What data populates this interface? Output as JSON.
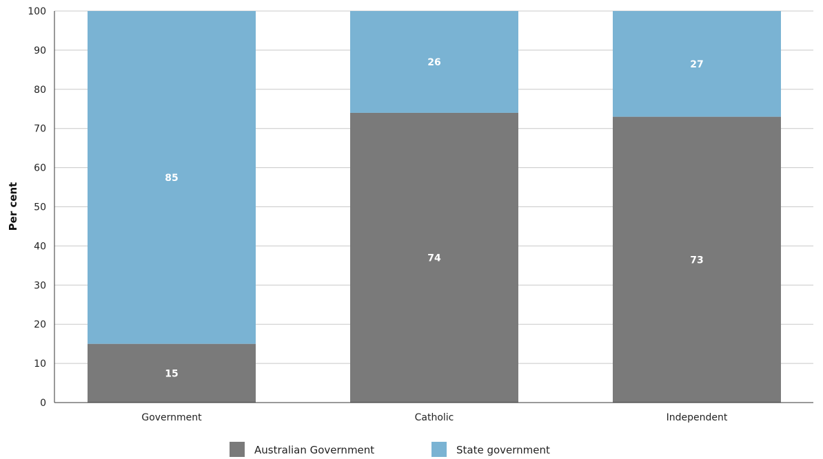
{
  "chart_data": {
    "type": "bar",
    "stacked": true,
    "categories": [
      "Government",
      "Catholic",
      "Independent"
    ],
    "series": [
      {
        "name": "Australian Government",
        "values": [
          15,
          74,
          73
        ],
        "color": "#7a7a7a"
      },
      {
        "name": "State government",
        "values": [
          85,
          26,
          27
        ],
        "color": "#7ab3d3"
      }
    ],
    "title": "",
    "xlabel": "",
    "ylabel": "Per cent",
    "ylim": [
      0,
      100
    ],
    "yticks": [
      0,
      10,
      20,
      30,
      40,
      50,
      60,
      70,
      80,
      90,
      100
    ],
    "grid": true,
    "legend_position": "bottom"
  }
}
